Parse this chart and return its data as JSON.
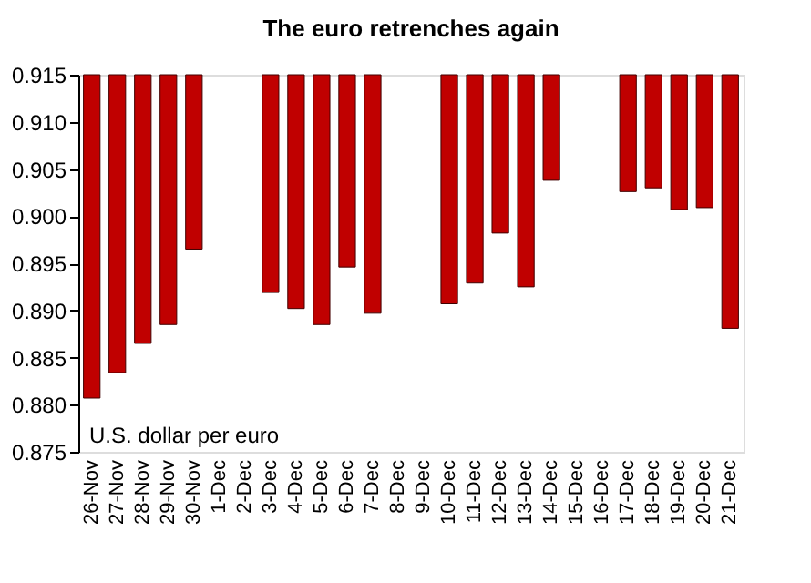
{
  "chart_data": {
    "type": "bar",
    "title": "The euro retrenches again",
    "categories": [
      "26-Nov",
      "27-Nov",
      "28-Nov",
      "29-Nov",
      "30-Nov",
      "1-Dec",
      "2-Dec",
      "3-Dec",
      "4-Dec",
      "5-Dec",
      "6-Dec",
      "7-Dec",
      "8-Dec",
      "9-Dec",
      "10-Dec",
      "11-Dec",
      "12-Dec",
      "13-Dec",
      "14-Dec",
      "15-Dec",
      "16-Dec",
      "17-Dec",
      "18-Dec",
      "19-Dec",
      "20-Dec",
      "21-Dec"
    ],
    "base": [
      0.915,
      0.915,
      0.915,
      0.915,
      0.915,
      null,
      null,
      0.915,
      0.915,
      0.915,
      0.915,
      0.915,
      null,
      null,
      0.915,
      0.915,
      0.915,
      0.915,
      0.915,
      null,
      null,
      0.915,
      0.915,
      0.915,
      0.915,
      0.915
    ],
    "values": [
      -0.0343,
      -0.0316,
      -0.0285,
      -0.0265,
      -0.0185,
      null,
      null,
      -0.0231,
      -0.0248,
      -0.0265,
      -0.0204,
      -0.0253,
      null,
      null,
      -0.0243,
      -0.0221,
      -0.0168,
      -0.0225,
      -0.0112,
      null,
      null,
      -0.0124,
      -0.012,
      -0.0143,
      -0.0141,
      -0.0269
    ],
    "color": "#c00000",
    "ylim": [
      0.875,
      0.915
    ],
    "yticks": [
      0.875,
      {
        "value": 0.88,
        "label": "0.880"
      },
      0.885,
      {
        "value": 0.89,
        "label": "0.890"
      },
      0.895,
      {
        "value": 0.9,
        "label": "0.900"
      },
      0.905,
      {
        "value": 0.91,
        "label": "0.910"
      },
      0.915
    ],
    "annotations": [
      "U.S. dollar per euro"
    ],
    "grid": false
  }
}
